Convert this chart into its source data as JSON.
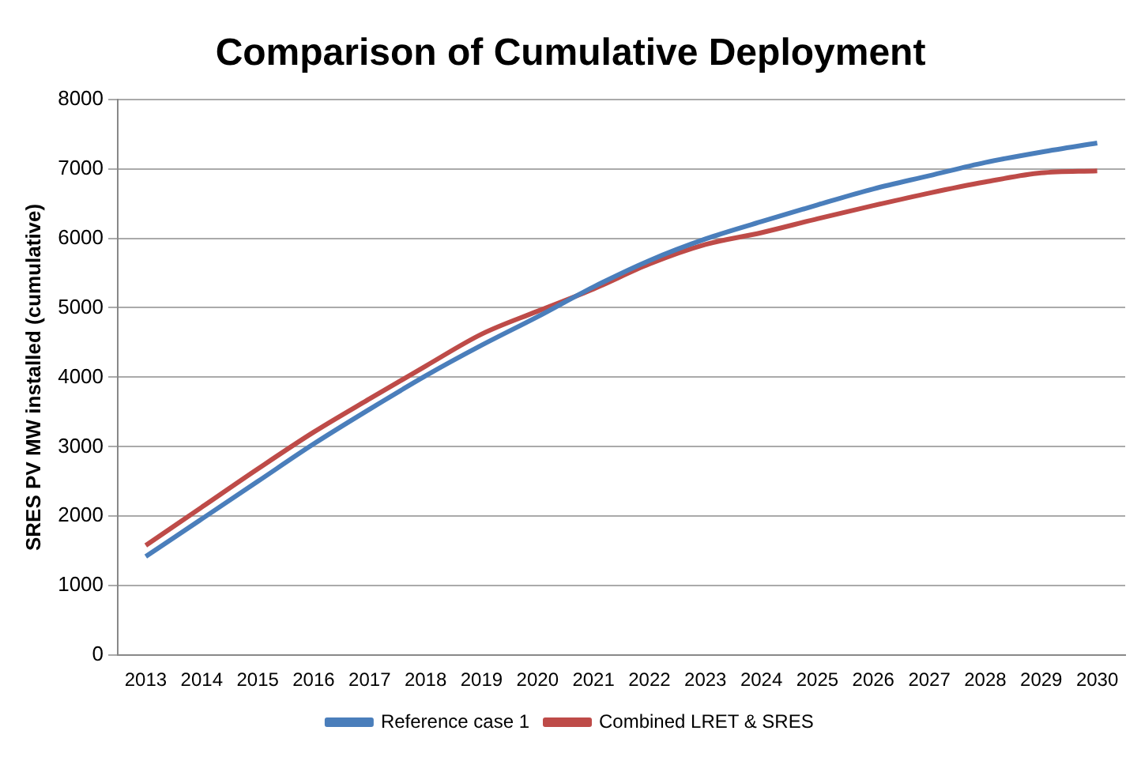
{
  "chart_data": {
    "type": "line",
    "title": "Comparison of Cumulative Deployment",
    "ylabel": "SRES PV MW installed (cumulative)",
    "categories": [
      "2013",
      "2014",
      "2015",
      "2016",
      "2017",
      "2018",
      "2019",
      "2020",
      "2021",
      "2022",
      "2023",
      "2024",
      "2025",
      "2026",
      "2027",
      "2028",
      "2029",
      "2030"
    ],
    "series": [
      {
        "name": "Reference case 1",
        "color": "#4a7ebb",
        "values": [
          1420,
          1960,
          2500,
          3040,
          3540,
          4020,
          4460,
          4870,
          5300,
          5680,
          5990,
          6240,
          6480,
          6710,
          6900,
          7090,
          7240,
          7370
        ]
      },
      {
        "name": "Combined LRET & SRES",
        "color": "#be4b48",
        "values": [
          1580,
          2130,
          2680,
          3210,
          3690,
          4160,
          4620,
          4950,
          5270,
          5630,
          5910,
          6080,
          6280,
          6470,
          6650,
          6810,
          6940,
          6970
        ]
      }
    ],
    "ylim": [
      0,
      8000
    ],
    "yticks": [
      0,
      1000,
      2000,
      3000,
      4000,
      5000,
      6000,
      7000,
      8000
    ],
    "grid": "y",
    "legend": "bottom",
    "marker": "none",
    "line_style": "solid"
  }
}
